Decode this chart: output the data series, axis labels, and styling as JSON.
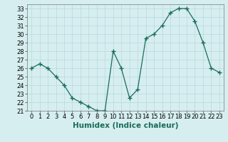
{
  "x": [
    0,
    1,
    2,
    3,
    4,
    5,
    6,
    7,
    8,
    9,
    10,
    11,
    12,
    13,
    14,
    15,
    16,
    17,
    18,
    19,
    20,
    21,
    22,
    23
  ],
  "y": [
    26,
    26.5,
    26,
    25,
    24,
    22.5,
    22,
    21.5,
    21,
    21,
    28,
    26,
    22.5,
    23.5,
    29.5,
    30,
    31,
    32.5,
    33,
    33,
    31.5,
    29,
    26,
    25.5
  ],
  "line_color": "#1a6b5a",
  "marker_color": "#1a6b5a",
  "bg_color": "#d6eef0",
  "grid_color": "#b8d8dc",
  "xlabel": "Humidex (Indice chaleur)",
  "ylim": [
    21,
    33.5
  ],
  "xlim": [
    -0.5,
    23.5
  ],
  "yticks": [
    21,
    22,
    23,
    24,
    25,
    26,
    27,
    28,
    29,
    30,
    31,
    32,
    33
  ],
  "xtick_labels": [
    "0",
    "1",
    "2",
    "3",
    "4",
    "5",
    "6",
    "7",
    "8",
    "9",
    "10",
    "11",
    "12",
    "13",
    "14",
    "15",
    "16",
    "17",
    "18",
    "19",
    "20",
    "21",
    "22",
    "23"
  ],
  "axis_fontsize": 7,
  "tick_fontsize": 6,
  "xlabel_fontsize": 7.5
}
